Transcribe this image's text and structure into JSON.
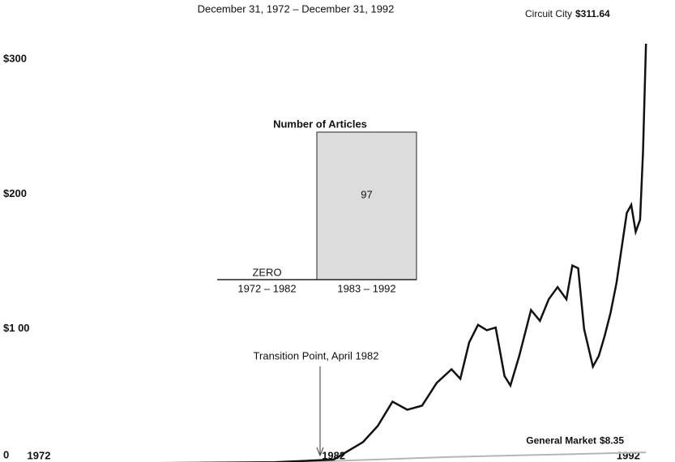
{
  "chart_data": [
    {
      "type": "line",
      "subtitle": "December 31, 1972 – December 31, 1992",
      "annotation": "Transition Point, April 1982",
      "xlim": [
        1972,
        1993.2
      ],
      "xticks": [
        1972,
        1982,
        1992
      ],
      "ylim": [
        0,
        320
      ],
      "yticks": [
        {
          "value": 0,
          "label": "0"
        },
        {
          "value": 100,
          "label": "$1 00"
        },
        {
          "value": 200,
          "label": "$200"
        },
        {
          "value": 300,
          "label": "$300"
        }
      ],
      "series": [
        {
          "name": "Circuit City",
          "end_label": "$311.64",
          "color": "#111111",
          "x": [
            1972,
            1976,
            1980,
            1982,
            1983,
            1983.5,
            1984,
            1984.5,
            1985,
            1985.5,
            1986,
            1986.3,
            1986.6,
            1986.9,
            1987.2,
            1987.5,
            1987.8,
            1988,
            1988.3,
            1988.7,
            1989,
            1989.3,
            1989.6,
            1989.9,
            1990.1,
            1990.3,
            1990.5,
            1990.8,
            1991,
            1991.2,
            1991.4,
            1991.6,
            1991.8,
            1991.95,
            1992.1,
            1992.25,
            1992.4,
            1992.5,
            1992.6
          ],
          "values": [
            0,
            0.5,
            1,
            3,
            16,
            28,
            46,
            40,
            43,
            60,
            70,
            63,
            90,
            103,
            99,
            101,
            65,
            58,
            80,
            114,
            106,
            122,
            131,
            122,
            147,
            145,
            100,
            72,
            80,
            95,
            112,
            134,
            164,
            186,
            192,
            172,
            181,
            231,
            311.64
          ]
        },
        {
          "name": "General Market",
          "end_label": "$8.35",
          "color": "#b5b5b5",
          "x": [
            1972,
            1976,
            1980,
            1982,
            1984,
            1986,
            1988,
            1990,
            1992.6
          ],
          "values": [
            0,
            0.5,
            1,
            2,
            3.5,
            5,
            6,
            7,
            8.35
          ]
        }
      ]
    },
    {
      "type": "bar",
      "title": "Number of Articles",
      "categories": [
        "1972 – 1982",
        "1983 – 1992"
      ],
      "values": [
        0,
        97
      ],
      "value_labels": [
        "ZERO",
        "97"
      ],
      "color": "#dcdcdc"
    }
  ]
}
